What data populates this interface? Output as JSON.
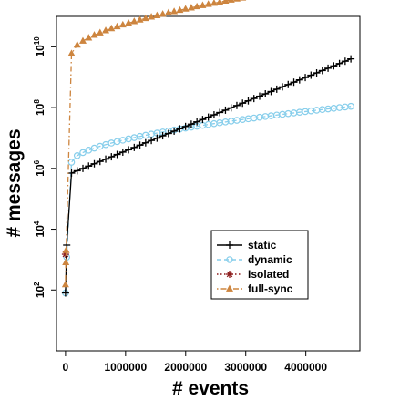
{
  "chart_data": {
    "type": "line",
    "title": "",
    "xlabel": "# events",
    "ylabel": "# messages",
    "xlim": [
      -150000,
      4900000
    ],
    "ylim": [
      1,
      100000000000
    ],
    "y_scale": "log",
    "x_ticks": [
      0,
      1000000,
      2000000,
      3000000,
      4000000
    ],
    "x_tick_labels": [
      "0",
      "1000000",
      "2000000",
      "3000000",
      "4000000"
    ],
    "y_ticks": [
      100,
      10000,
      1000000,
      100000000,
      10000000000
    ],
    "y_tick_labels": [
      {
        "base": "10",
        "exp": "2"
      },
      {
        "base": "10",
        "exp": "4"
      },
      {
        "base": "10",
        "exp": "6"
      },
      {
        "base": "10",
        "exp": "8"
      },
      {
        "base": "10",
        "exp": "10"
      }
    ],
    "grid": false,
    "legend_position": "lower-right",
    "series": [
      {
        "name": "static",
        "color": "#000000",
        "marker": "plus",
        "dash": "solid",
        "x_start": 100000,
        "x_end": 4750000,
        "n": 50,
        "y_start": 700000,
        "y_end": 4000000000,
        "ramp": 1.0,
        "prefix": [
          [
            0,
            80
          ],
          [
            20000,
            3000
          ]
        ]
      },
      {
        "name": "dynamic",
        "color": "#87ceeb",
        "marker": "circle",
        "dash": "dashed",
        "x_start": 100000,
        "x_end": 4750000,
        "n": 50,
        "y_start": 1600000,
        "y_end": 110000000,
        "ramp": 0.55,
        "prefix": [
          [
            0,
            80
          ],
          [
            20000,
            1200
          ]
        ]
      },
      {
        "name": "Isolated",
        "color": "#8b1a1a",
        "marker": "asterisk",
        "dash": "dotted",
        "x_start": 0,
        "x_end": 0,
        "n": 0,
        "y_start": 0,
        "y_end": 0,
        "ramp": 1,
        "prefix": [
          [
            0,
            1500
          ]
        ]
      },
      {
        "name": "full-sync",
        "color": "#cd853f",
        "marker": "triangle",
        "dash": "dotdash",
        "x_start": 100000,
        "x_end": 4750000,
        "n": 50,
        "y_start": 6000000000,
        "y_end": 1500000000000,
        "ramp": 0.55,
        "prefix": [
          [
            0,
            150
          ],
          [
            5000,
            800
          ],
          [
            10000,
            2000
          ]
        ]
      }
    ]
  }
}
